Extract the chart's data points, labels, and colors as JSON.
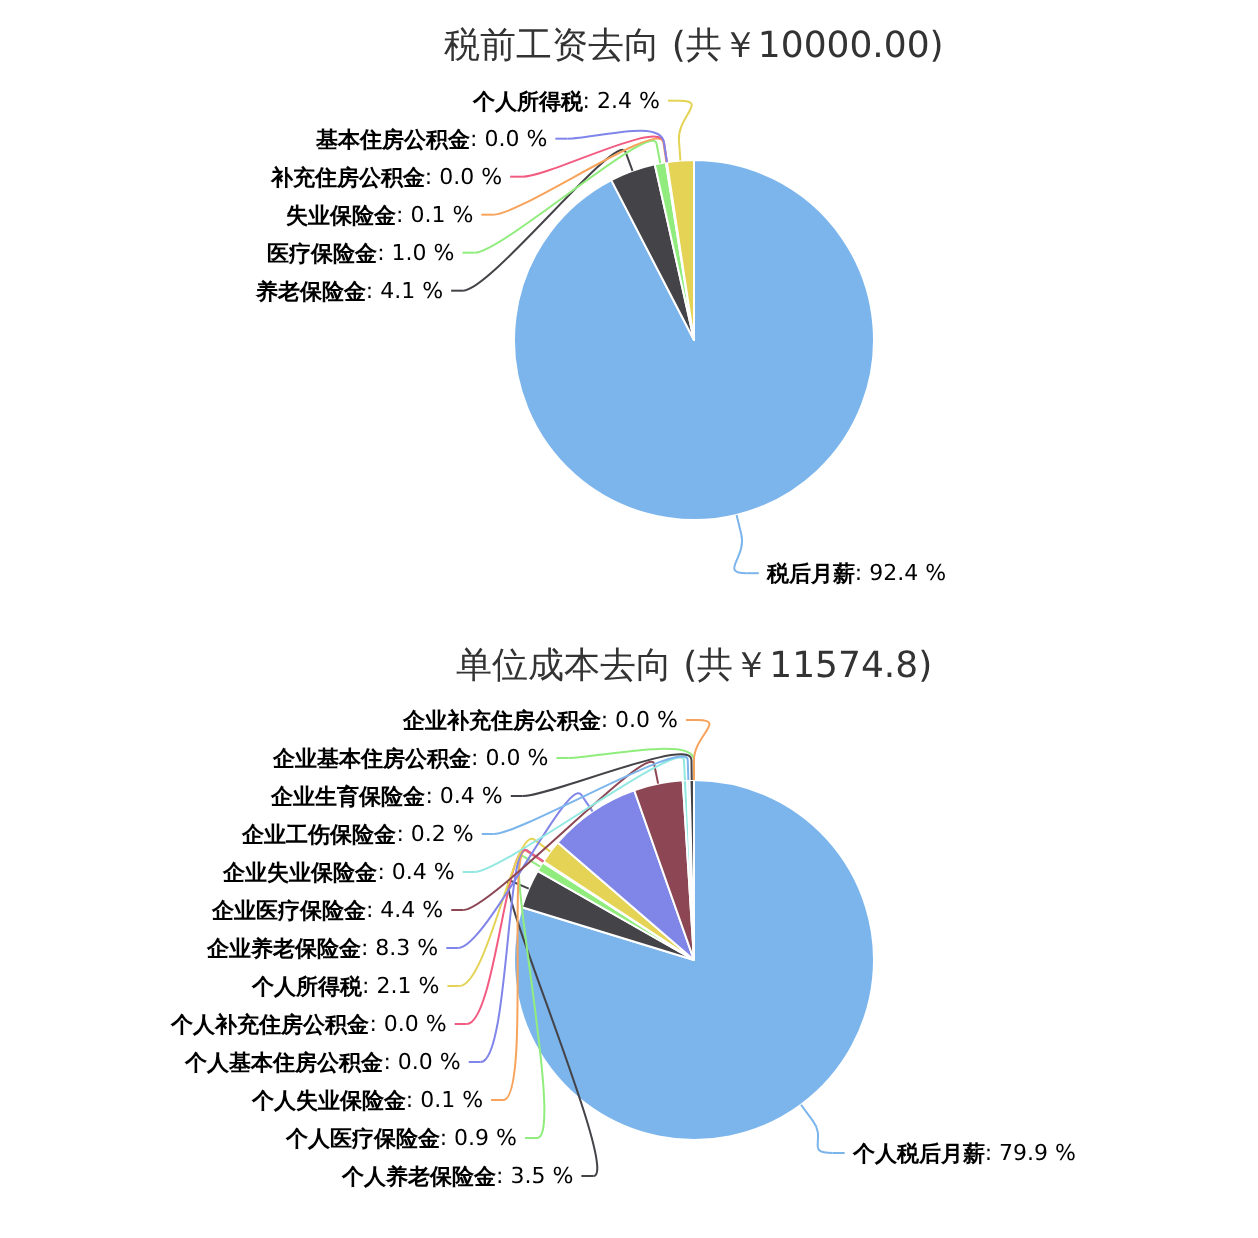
{
  "chart_data": [
    {
      "type": "pie",
      "title": "税前工资去向 (共￥10000.00)",
      "categories": [
        "税后月薪",
        "养老保险金",
        "医疗保险金",
        "失业保险金",
        "补充住房公积金",
        "基本住房公积金",
        "个人所得税"
      ],
      "values": [
        92.4,
        4.1,
        1.0,
        0.1,
        0.0,
        0.0,
        2.4
      ],
      "value_labels": [
        ": 92.4 %",
        ": 4.1 %",
        ": 1.0 %",
        ": 0.1 %",
        ": 0.0 %",
        ": 0.0 %",
        ": 2.4 %"
      ],
      "colors": [
        "#7cb5ec",
        "#434348",
        "#90ed7d",
        "#f7a35c",
        "#f15c80",
        "#8085e9",
        "#e4d354"
      ]
    },
    {
      "type": "pie",
      "title": "单位成本去向 (共￥11574.8)",
      "categories": [
        "个人税后月薪",
        "个人养老保险金",
        "个人医疗保险金",
        "个人失业保险金",
        "个人基本住房公积金",
        "个人补充住房公积金",
        "个人所得税",
        "企业养老保险金",
        "企业医疗保险金",
        "企业失业保险金",
        "企业工伤保险金",
        "企业生育保险金",
        "企业基本住房公积金",
        "企业补充住房公积金"
      ],
      "values": [
        79.9,
        3.5,
        0.9,
        0.1,
        0.0,
        0.0,
        2.1,
        8.3,
        4.4,
        0.4,
        0.2,
        0.4,
        0.0,
        0.0
      ],
      "value_labels": [
        ": 79.9 %",
        ": 3.5 %",
        ": 0.9 %",
        ": 0.1 %",
        ": 0.0 %",
        ": 0.0 %",
        ": 2.1 %",
        ": 8.3 %",
        ": 4.4 %",
        ": 0.4 %",
        ": 0.2 %",
        ": 0.4 %",
        ": 0.0 %",
        ": 0.0 %"
      ],
      "colors": [
        "#7cb5ec",
        "#434348",
        "#90ed7d",
        "#f7a35c",
        "#8085e9",
        "#f15c80",
        "#e4d354",
        "#8085e8",
        "#8d4653",
        "#91e8e1",
        "#7cb5ec",
        "#434348",
        "#90ed7d",
        "#f7a35c"
      ]
    }
  ]
}
